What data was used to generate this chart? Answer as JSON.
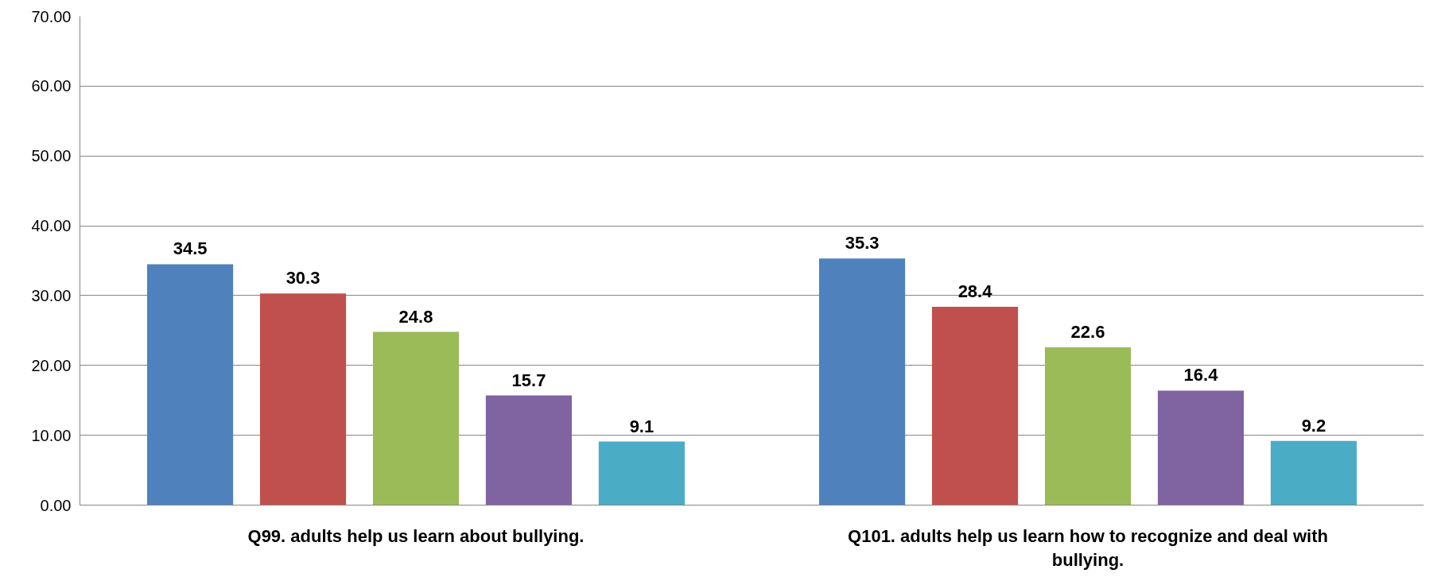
{
  "chart_data": {
    "type": "bar",
    "categories": [
      "Q99. adults help us learn about bullying.",
      "Q101. adults help us learn how to recognize and deal with bullying."
    ],
    "series": [
      {
        "color": "#4f81bd",
        "values": [
          34.5,
          35.3
        ]
      },
      {
        "color": "#c0504d",
        "values": [
          30.3,
          28.4
        ]
      },
      {
        "color": "#9bbb59",
        "values": [
          24.8,
          22.6
        ]
      },
      {
        "color": "#8064a2",
        "values": [
          15.7,
          16.4
        ]
      },
      {
        "color": "#4bacc6",
        "values": [
          9.1,
          9.2
        ]
      }
    ],
    "ylim": [
      0,
      70
    ],
    "yticks": [
      {
        "value": 0,
        "label": "0.00"
      },
      {
        "value": 10,
        "label": "10.00"
      },
      {
        "value": 20,
        "label": "20.00"
      },
      {
        "value": 30,
        "label": "30.00"
      },
      {
        "value": 40,
        "label": "40.00"
      },
      {
        "value": 50,
        "label": "50.00"
      },
      {
        "value": 60,
        "label": "60.00"
      },
      {
        "value": 70,
        "label": "70.00"
      }
    ],
    "grid": "y",
    "data_labels": true
  }
}
